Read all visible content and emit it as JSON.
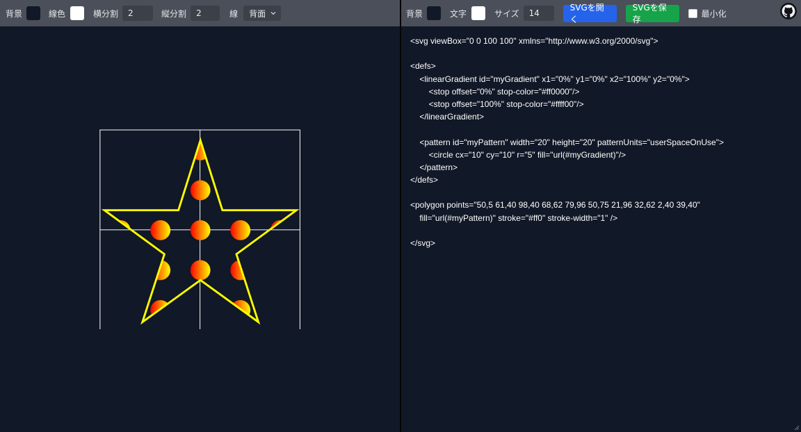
{
  "left_toolbar": {
    "bg_label": "背景",
    "bg_color": "#111827",
    "line_color_label": "線色",
    "line_color": "#ffffff",
    "h_div_label": "横分割",
    "h_div_value": "2",
    "v_div_label": "縦分割",
    "v_div_value": "2",
    "line_label": "線",
    "line_position": "背面"
  },
  "right_toolbar": {
    "bg_label": "背景",
    "bg_color": "#111827",
    "text_label": "文字",
    "text_color": "#ffffff",
    "size_label": "サイズ",
    "size_value": "14",
    "open_button": "SVGを開く",
    "save_button": "SVGを保存",
    "minify_label": "最小化",
    "minify_checked": false
  },
  "preview": {
    "grid_color": "#ffffff",
    "stroke_color": "#ffff00",
    "gradient_start": "#ff0000",
    "gradient_end": "#ffff00"
  },
  "editor": {
    "lines": [
      "<svg viewBox=\"0 0 100 100\" xmlns=\"http://www.w3.org/2000/svg\">",
      "",
      "<defs>",
      "    <linearGradient id=\"myGradient\" x1=\"0%\" y1=\"0%\" x2=\"100%\" y2=\"0%\">",
      "        <stop offset=\"0%\" stop-color=\"#ff0000\"/>",
      "        <stop offset=\"100%\" stop-color=\"#ffff00\"/>",
      "    </linearGradient>",
      "",
      "    <pattern id=\"myPattern\" width=\"20\" height=\"20\" patternUnits=\"userSpaceOnUse\">",
      "        <circle cx=\"10\" cy=\"10\" r=\"5\" fill=\"url(#myGradient)\"/>",
      "    </pattern>",
      "</defs>",
      "",
      "<polygon points=\"50,5 61,40 98,40 68,62 79,96 50,75 21,96 32,62 2,40 39,40\"",
      "    fill=\"url(#myPattern)\" stroke=\"#ff0\" stroke-width=\"1\" />",
      "",
      "</svg>"
    ]
  }
}
